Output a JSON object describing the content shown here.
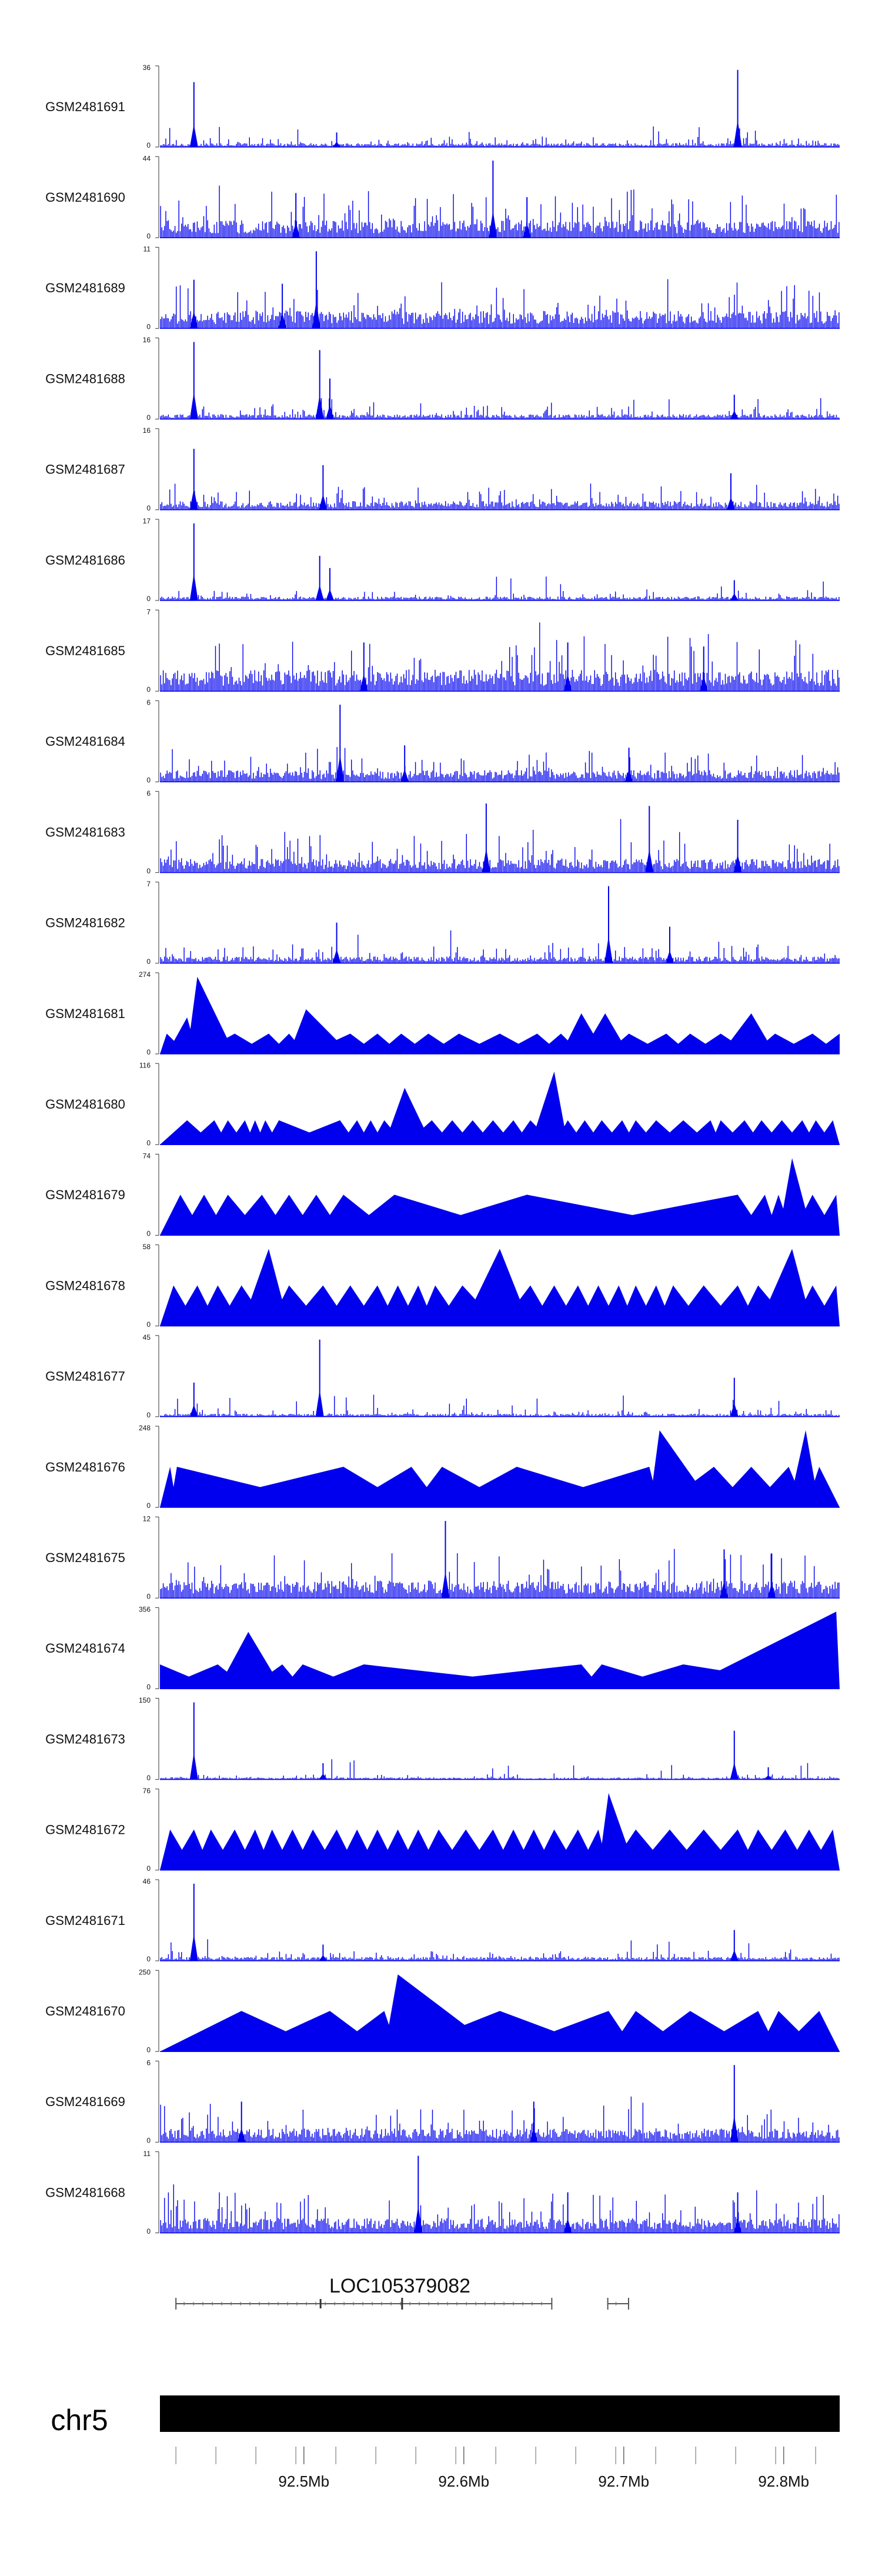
{
  "chart_data": {
    "type": "area",
    "chromosome": "chr5",
    "gene": "LOC105379082",
    "series_color": "#0000ee",
    "bar_color": "#000000",
    "x_range_mb": [
      92.41,
      92.835
    ],
    "x_ticks": [
      "92.5Mb",
      "92.6Mb",
      "92.7Mb",
      "92.8Mb"
    ],
    "x_tick_values_mb": [
      92.5,
      92.6,
      92.7,
      92.8
    ],
    "gene_model_mb": {
      "main": [
        92.42,
        92.655
      ],
      "small": [
        92.69,
        92.703
      ]
    },
    "tracks": [
      {
        "name": "GSM2481691",
        "ymax": "36",
        "ymin": "0",
        "style": "spiky",
        "baseline": 0.04,
        "peaks": [
          [
            0.05,
            0.8
          ],
          [
            0.85,
            0.95
          ],
          [
            0.26,
            0.18
          ]
        ]
      },
      {
        "name": "GSM2481690",
        "ymax": "44",
        "ymin": "0",
        "style": "spiky",
        "baseline": 0.18,
        "peaks": [
          [
            0.49,
            0.95
          ],
          [
            0.2,
            0.55
          ],
          [
            0.54,
            0.5
          ]
        ]
      },
      {
        "name": "GSM2481689",
        "ymax": "11",
        "ymin": "0",
        "style": "spiky",
        "baseline": 0.18,
        "peaks": [
          [
            0.23,
            0.95
          ],
          [
            0.05,
            0.6
          ],
          [
            0.18,
            0.55
          ]
        ]
      },
      {
        "name": "GSM2481688",
        "ymax": "16",
        "ymin": "0",
        "style": "spiky",
        "baseline": 0.05,
        "peaks": [
          [
            0.05,
            0.95
          ],
          [
            0.235,
            0.85
          ],
          [
            0.25,
            0.5
          ],
          [
            0.845,
            0.3
          ]
        ]
      },
      {
        "name": "GSM2481687",
        "ymax": "16",
        "ymin": "0",
        "style": "spiky",
        "baseline": 0.09,
        "peaks": [
          [
            0.05,
            0.75
          ],
          [
            0.24,
            0.55
          ],
          [
            0.84,
            0.45
          ]
        ]
      },
      {
        "name": "GSM2481686",
        "ymax": "17",
        "ymin": "0",
        "style": "spiky",
        "baseline": 0.04,
        "peaks": [
          [
            0.05,
            0.95
          ],
          [
            0.235,
            0.55
          ],
          [
            0.25,
            0.4
          ],
          [
            0.845,
            0.25
          ]
        ]
      },
      {
        "name": "GSM2481685",
        "ymax": "7",
        "ymin": "0",
        "style": "spiky",
        "baseline": 0.22,
        "peaks": [
          [
            0.3,
            0.6
          ],
          [
            0.6,
            0.6
          ],
          [
            0.8,
            0.55
          ]
        ]
      },
      {
        "name": "GSM2481684",
        "ymax": "6",
        "ymin": "0",
        "style": "spiky",
        "baseline": 0.12,
        "peaks": [
          [
            0.265,
            0.95
          ],
          [
            0.36,
            0.45
          ],
          [
            0.69,
            0.42
          ]
        ]
      },
      {
        "name": "GSM2481683",
        "ymax": "6",
        "ymin": "0",
        "style": "spiky",
        "baseline": 0.14,
        "peaks": [
          [
            0.48,
            0.85
          ],
          [
            0.72,
            0.82
          ],
          [
            0.85,
            0.65
          ]
        ]
      },
      {
        "name": "GSM2481682",
        "ymax": "7",
        "ymin": "0",
        "style": "spiky",
        "baseline": 0.07,
        "peaks": [
          [
            0.66,
            0.95
          ],
          [
            0.26,
            0.5
          ],
          [
            0.75,
            0.45
          ]
        ]
      },
      {
        "name": "GSM2481681",
        "ymax": "274",
        "ymin": "0",
        "style": "triangle",
        "peaks": [
          [
            0.01,
            0.25
          ],
          [
            0.04,
            0.45
          ],
          [
            0.055,
            0.95
          ],
          [
            0.11,
            0.25
          ],
          [
            0.16,
            0.25
          ],
          [
            0.19,
            0.25
          ],
          [
            0.215,
            0.55
          ],
          [
            0.28,
            0.25
          ],
          [
            0.32,
            0.25
          ],
          [
            0.355,
            0.25
          ],
          [
            0.395,
            0.25
          ],
          [
            0.44,
            0.25
          ],
          [
            0.5,
            0.25
          ],
          [
            0.555,
            0.25
          ],
          [
            0.59,
            0.25
          ],
          [
            0.62,
            0.5
          ],
          [
            0.655,
            0.5
          ],
          [
            0.69,
            0.25
          ],
          [
            0.745,
            0.25
          ],
          [
            0.78,
            0.25
          ],
          [
            0.825,
            0.25
          ],
          [
            0.87,
            0.5
          ],
          [
            0.905,
            0.25
          ],
          [
            0.96,
            0.25
          ],
          [
            1.0,
            0.25
          ]
        ]
      },
      {
        "name": "GSM2481680",
        "ymax": "116",
        "ymin": "0",
        "style": "triangle",
        "peaks": [
          [
            0.04,
            0.3
          ],
          [
            0.08,
            0.3
          ],
          [
            0.1,
            0.3
          ],
          [
            0.125,
            0.3
          ],
          [
            0.14,
            0.3
          ],
          [
            0.155,
            0.3
          ],
          [
            0.175,
            0.3
          ],
          [
            0.265,
            0.3
          ],
          [
            0.29,
            0.3
          ],
          [
            0.31,
            0.3
          ],
          [
            0.33,
            0.3
          ],
          [
            0.36,
            0.7
          ],
          [
            0.4,
            0.3
          ],
          [
            0.43,
            0.3
          ],
          [
            0.46,
            0.3
          ],
          [
            0.49,
            0.3
          ],
          [
            0.52,
            0.3
          ],
          [
            0.545,
            0.3
          ],
          [
            0.58,
            0.9
          ],
          [
            0.6,
            0.3
          ],
          [
            0.625,
            0.3
          ],
          [
            0.65,
            0.3
          ],
          [
            0.68,
            0.3
          ],
          [
            0.7,
            0.3
          ],
          [
            0.73,
            0.3
          ],
          [
            0.77,
            0.3
          ],
          [
            0.81,
            0.3
          ],
          [
            0.825,
            0.3
          ],
          [
            0.86,
            0.3
          ],
          [
            0.885,
            0.3
          ],
          [
            0.915,
            0.3
          ],
          [
            0.945,
            0.3
          ],
          [
            0.965,
            0.3
          ],
          [
            0.99,
            0.3
          ]
        ]
      },
      {
        "name": "GSM2481679",
        "ymax": "74",
        "ymin": "0",
        "style": "triangle",
        "peaks": [
          [
            0.03,
            0.5
          ],
          [
            0.065,
            0.5
          ],
          [
            0.1,
            0.5
          ],
          [
            0.15,
            0.5
          ],
          [
            0.19,
            0.5
          ],
          [
            0.23,
            0.5
          ],
          [
            0.27,
            0.5
          ],
          [
            0.345,
            0.5
          ],
          [
            0.54,
            0.5
          ],
          [
            0.85,
            0.5
          ],
          [
            0.89,
            0.5
          ],
          [
            0.91,
            0.5
          ],
          [
            0.93,
            0.95
          ],
          [
            0.96,
            0.5
          ],
          [
            0.995,
            0.5
          ]
        ]
      },
      {
        "name": "GSM2481678",
        "ymax": "58",
        "ymin": "0",
        "style": "triangle",
        "peaks": [
          [
            0.02,
            0.5
          ],
          [
            0.055,
            0.5
          ],
          [
            0.085,
            0.5
          ],
          [
            0.12,
            0.5
          ],
          [
            0.16,
            0.95
          ],
          [
            0.19,
            0.5
          ],
          [
            0.24,
            0.5
          ],
          [
            0.28,
            0.5
          ],
          [
            0.32,
            0.5
          ],
          [
            0.35,
            0.5
          ],
          [
            0.38,
            0.5
          ],
          [
            0.405,
            0.5
          ],
          [
            0.445,
            0.5
          ],
          [
            0.5,
            0.95
          ],
          [
            0.545,
            0.5
          ],
          [
            0.58,
            0.5
          ],
          [
            0.615,
            0.5
          ],
          [
            0.645,
            0.5
          ],
          [
            0.675,
            0.5
          ],
          [
            0.7,
            0.5
          ],
          [
            0.73,
            0.5
          ],
          [
            0.755,
            0.5
          ],
          [
            0.8,
            0.5
          ],
          [
            0.85,
            0.5
          ],
          [
            0.88,
            0.5
          ],
          [
            0.93,
            0.95
          ],
          [
            0.96,
            0.5
          ],
          [
            0.995,
            0.5
          ]
        ]
      },
      {
        "name": "GSM2481677",
        "ymax": "45",
        "ymin": "0",
        "style": "spiky",
        "baseline": 0.03,
        "peaks": [
          [
            0.235,
            0.95
          ],
          [
            0.05,
            0.42
          ],
          [
            0.845,
            0.48
          ]
        ]
      },
      {
        "name": "GSM2481676",
        "ymax": "248",
        "ymin": "0",
        "style": "triangle",
        "peaks": [
          [
            0.015,
            0.5
          ],
          [
            0.025,
            0.5
          ],
          [
            0.27,
            0.5
          ],
          [
            0.37,
            0.5
          ],
          [
            0.415,
            0.5
          ],
          [
            0.525,
            0.5
          ],
          [
            0.72,
            0.5
          ],
          [
            0.735,
            0.95
          ],
          [
            0.815,
            0.5
          ],
          [
            0.87,
            0.5
          ],
          [
            0.925,
            0.5
          ],
          [
            0.95,
            0.95
          ],
          [
            0.97,
            0.5
          ]
        ]
      },
      {
        "name": "GSM2481675",
        "ymax": "12",
        "ymin": "0",
        "style": "spiky",
        "baseline": 0.18,
        "peaks": [
          [
            0.42,
            0.95
          ],
          [
            0.83,
            0.6
          ],
          [
            0.9,
            0.55
          ]
        ]
      },
      {
        "name": "GSM2481674",
        "ymax": "356",
        "ymin": "0",
        "style": "triangle",
        "peaks": [
          [
            0.0,
            0.3
          ],
          [
            0.085,
            0.3
          ],
          [
            0.13,
            0.7
          ],
          [
            0.18,
            0.3
          ],
          [
            0.21,
            0.3
          ],
          [
            0.3,
            0.3
          ],
          [
            0.62,
            0.3
          ],
          [
            0.65,
            0.3
          ],
          [
            0.77,
            0.3
          ],
          [
            0.995,
            0.95
          ]
        ]
      },
      {
        "name": "GSM2481673",
        "ymax": "150",
        "ymin": "0",
        "style": "spiky",
        "baseline": 0.02,
        "peaks": [
          [
            0.05,
            0.95
          ],
          [
            0.845,
            0.6
          ],
          [
            0.24,
            0.2
          ],
          [
            0.895,
            0.15
          ]
        ]
      },
      {
        "name": "GSM2481672",
        "ymax": "76",
        "ymin": "0",
        "style": "triangle",
        "peaks": [
          [
            0.015,
            0.5
          ],
          [
            0.05,
            0.5
          ],
          [
            0.075,
            0.5
          ],
          [
            0.11,
            0.5
          ],
          [
            0.14,
            0.5
          ],
          [
            0.165,
            0.5
          ],
          [
            0.195,
            0.5
          ],
          [
            0.225,
            0.5
          ],
          [
            0.26,
            0.5
          ],
          [
            0.29,
            0.5
          ],
          [
            0.32,
            0.5
          ],
          [
            0.35,
            0.5
          ],
          [
            0.38,
            0.5
          ],
          [
            0.41,
            0.5
          ],
          [
            0.45,
            0.5
          ],
          [
            0.49,
            0.5
          ],
          [
            0.52,
            0.5
          ],
          [
            0.55,
            0.5
          ],
          [
            0.58,
            0.5
          ],
          [
            0.615,
            0.5
          ],
          [
            0.645,
            0.5
          ],
          [
            0.66,
            0.95
          ],
          [
            0.7,
            0.5
          ],
          [
            0.75,
            0.5
          ],
          [
            0.8,
            0.5
          ],
          [
            0.85,
            0.5
          ],
          [
            0.88,
            0.5
          ],
          [
            0.92,
            0.5
          ],
          [
            0.955,
            0.5
          ],
          [
            0.99,
            0.5
          ]
        ]
      },
      {
        "name": "GSM2481671",
        "ymax": "46",
        "ymin": "0",
        "style": "spiky",
        "baseline": 0.04,
        "peaks": [
          [
            0.05,
            0.95
          ],
          [
            0.845,
            0.38
          ],
          [
            0.24,
            0.2
          ]
        ]
      },
      {
        "name": "GSM2481670",
        "ymax": "250",
        "ymin": "0",
        "style": "triangle",
        "peaks": [
          [
            0.12,
            0.5
          ],
          [
            0.25,
            0.5
          ],
          [
            0.33,
            0.5
          ],
          [
            0.35,
            0.95
          ],
          [
            0.5,
            0.5
          ],
          [
            0.66,
            0.5
          ],
          [
            0.7,
            0.5
          ],
          [
            0.78,
            0.5
          ],
          [
            0.88,
            0.5
          ],
          [
            0.91,
            0.5
          ],
          [
            0.97,
            0.5
          ]
        ]
      },
      {
        "name": "GSM2481669",
        "ymax": "6",
        "ymin": "0",
        "style": "spiky",
        "baseline": 0.14,
        "peaks": [
          [
            0.845,
            0.95
          ],
          [
            0.12,
            0.5
          ],
          [
            0.55,
            0.5
          ]
        ]
      },
      {
        "name": "GSM2481668",
        "ymax": "11",
        "ymin": "0",
        "style": "spiky",
        "baseline": 0.15,
        "peaks": [
          [
            0.38,
            0.95
          ],
          [
            0.6,
            0.5
          ],
          [
            0.85,
            0.5
          ]
        ]
      }
    ]
  }
}
